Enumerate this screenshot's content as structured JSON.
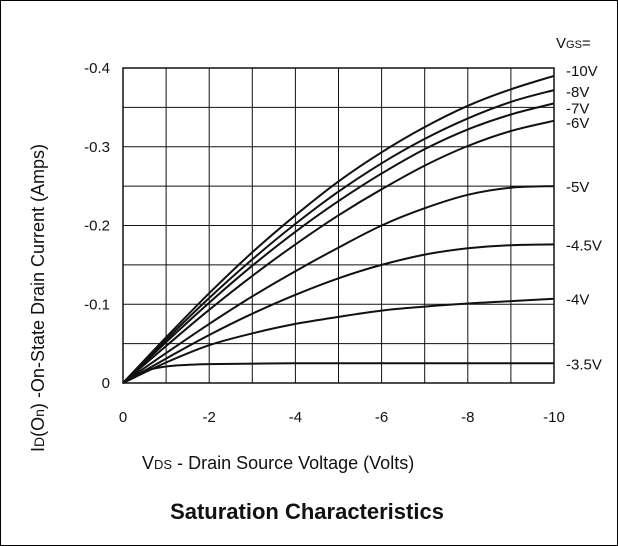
{
  "chart_data": {
    "type": "line",
    "title": "Saturation Characteristics",
    "xlabel": {
      "prefix": "V",
      "sub": "DS",
      "text": " - Drain Source Voltage (Volts)"
    },
    "ylabel": {
      "prefix": "I",
      "sub": "D",
      "paren_pre": "(O",
      "paren_sub": "n",
      "paren_post": ")",
      "text": " -On-State Drain Current (Amps)"
    },
    "xlim": [
      0,
      -10
    ],
    "ylim": [
      0,
      -0.4
    ],
    "x_ticks": [
      0,
      -2,
      -4,
      -6,
      -8,
      -10
    ],
    "x_tick_labels": [
      "0",
      "-2",
      "-4",
      "-6",
      "-8",
      "-10"
    ],
    "y_ticks": [
      0,
      -0.1,
      -0.2,
      -0.3,
      -0.4
    ],
    "y_tick_labels": [
      "0",
      "-0.1",
      "-0.2",
      "-0.3",
      "-0.4"
    ],
    "grid": true,
    "legend_header": {
      "prefix": "V",
      "sub": "GS",
      "suffix": "="
    },
    "series": [
      {
        "name": "-10V",
        "x": [
          0,
          -1,
          -2,
          -3,
          -4,
          -5,
          -6,
          -7,
          -8,
          -9,
          -10
        ],
        "y": [
          0,
          -0.058,
          -0.114,
          -0.166,
          -0.213,
          -0.256,
          -0.293,
          -0.325,
          -0.352,
          -0.373,
          -0.39
        ]
      },
      {
        "name": "-8V",
        "x": [
          0,
          -1,
          -2,
          -3,
          -4,
          -5,
          -6,
          -7,
          -8,
          -9,
          -10
        ],
        "y": [
          0,
          -0.055,
          -0.108,
          -0.157,
          -0.202,
          -0.243,
          -0.279,
          -0.31,
          -0.336,
          -0.357,
          -0.372
        ]
      },
      {
        "name": "-7V",
        "x": [
          0,
          -1,
          -2,
          -3,
          -4,
          -5,
          -6,
          -7,
          -8,
          -9,
          -10
        ],
        "y": [
          0,
          -0.052,
          -0.102,
          -0.149,
          -0.192,
          -0.231,
          -0.266,
          -0.297,
          -0.322,
          -0.341,
          -0.355
        ]
      },
      {
        "name": "-6V",
        "x": [
          0,
          -1,
          -2,
          -3,
          -4,
          -5,
          -6,
          -7,
          -8,
          -9,
          -10
        ],
        "y": [
          0,
          -0.047,
          -0.093,
          -0.136,
          -0.176,
          -0.213,
          -0.246,
          -0.276,
          -0.301,
          -0.32,
          -0.333
        ]
      },
      {
        "name": "-5V",
        "x": [
          0,
          -1,
          -2,
          -3,
          -4,
          -5,
          -6,
          -7,
          -8,
          -9,
          -10
        ],
        "y": [
          0,
          -0.038,
          -0.075,
          -0.11,
          -0.142,
          -0.172,
          -0.2,
          -0.222,
          -0.239,
          -0.248,
          -0.25
        ]
      },
      {
        "name": "-4.5V",
        "x": [
          0,
          -1,
          -2,
          -3,
          -4,
          -5,
          -6,
          -7,
          -8,
          -9,
          -10
        ],
        "y": [
          0,
          -0.031,
          -0.061,
          -0.088,
          -0.112,
          -0.133,
          -0.15,
          -0.163,
          -0.171,
          -0.175,
          -0.176
        ]
      },
      {
        "name": "-4V",
        "x": [
          0,
          -1,
          -2,
          -3,
          -4,
          -5,
          -6,
          -7,
          -8,
          -9,
          -10
        ],
        "y": [
          0,
          -0.026,
          -0.048,
          -0.063,
          -0.075,
          -0.084,
          -0.092,
          -0.097,
          -0.101,
          -0.104,
          -0.107
        ]
      },
      {
        "name": "-3.5V",
        "x": [
          0,
          -0.5,
          -1,
          -1.5,
          -2,
          -4,
          -6,
          -8,
          -10
        ],
        "y": [
          0,
          -0.015,
          -0.021,
          -0.023,
          -0.024,
          -0.025,
          -0.025,
          -0.025,
          -0.025
        ]
      }
    ]
  }
}
